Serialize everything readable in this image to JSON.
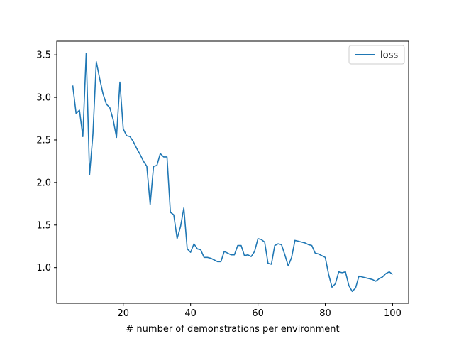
{
  "chart_data": {
    "type": "line",
    "title": "",
    "xlabel": "# number of demonstrations per environment",
    "ylabel": "",
    "xlim": [
      0.25,
      104.75
    ],
    "ylim": [
      0.58,
      3.66
    ],
    "xticks": [
      20,
      40,
      60,
      80,
      100
    ],
    "yticks": [
      1.0,
      1.5,
      2.0,
      2.5,
      3.0,
      3.5
    ],
    "ytick_labels": [
      "1.0",
      "1.5",
      "2.0",
      "2.5",
      "3.0",
      "3.5"
    ],
    "grid": false,
    "legend_position": "top-right",
    "series": [
      {
        "name": "loss",
        "color": "#1f77b4",
        "x": [
          5,
          6,
          7,
          8,
          9,
          10,
          11,
          12,
          13,
          14,
          15,
          16,
          17,
          18,
          19,
          20,
          21,
          22,
          23,
          24,
          25,
          26,
          27,
          28,
          29,
          30,
          31,
          32,
          33,
          34,
          35,
          36,
          37,
          38,
          39,
          40,
          41,
          42,
          43,
          44,
          45,
          46,
          47,
          48,
          49,
          50,
          51,
          52,
          53,
          54,
          55,
          56,
          57,
          58,
          59,
          60,
          61,
          62,
          63,
          64,
          65,
          66,
          67,
          68,
          69,
          70,
          71,
          72,
          73,
          74,
          75,
          76,
          77,
          78,
          79,
          80,
          81,
          82,
          83,
          84,
          85,
          86,
          87,
          88,
          89,
          90,
          91,
          92,
          93,
          94,
          95,
          96,
          97,
          98,
          99,
          100
        ],
        "y": [
          3.14,
          2.81,
          2.85,
          2.54,
          3.52,
          2.09,
          2.57,
          3.42,
          3.22,
          3.04,
          2.92,
          2.88,
          2.74,
          2.53,
          3.18,
          2.63,
          2.55,
          2.54,
          2.48,
          2.4,
          2.33,
          2.25,
          2.19,
          1.74,
          2.19,
          2.2,
          2.34,
          2.3,
          2.3,
          1.65,
          1.62,
          1.34,
          1.48,
          1.7,
          1.22,
          1.18,
          1.28,
          1.22,
          1.21,
          1.12,
          1.12,
          1.11,
          1.09,
          1.07,
          1.07,
          1.19,
          1.17,
          1.15,
          1.15,
          1.26,
          1.26,
          1.14,
          1.15,
          1.13,
          1.19,
          1.34,
          1.33,
          1.3,
          1.05,
          1.04,
          1.26,
          1.28,
          1.27,
          1.15,
          1.02,
          1.12,
          1.32,
          1.31,
          1.3,
          1.29,
          1.27,
          1.26,
          1.17,
          1.16,
          1.14,
          1.12,
          0.92,
          0.77,
          0.81,
          0.95,
          0.94,
          0.95,
          0.79,
          0.72,
          0.76,
          0.9,
          0.89,
          0.88,
          0.87,
          0.86,
          0.84,
          0.87,
          0.89,
          0.93,
          0.95,
          0.92
        ]
      }
    ]
  }
}
